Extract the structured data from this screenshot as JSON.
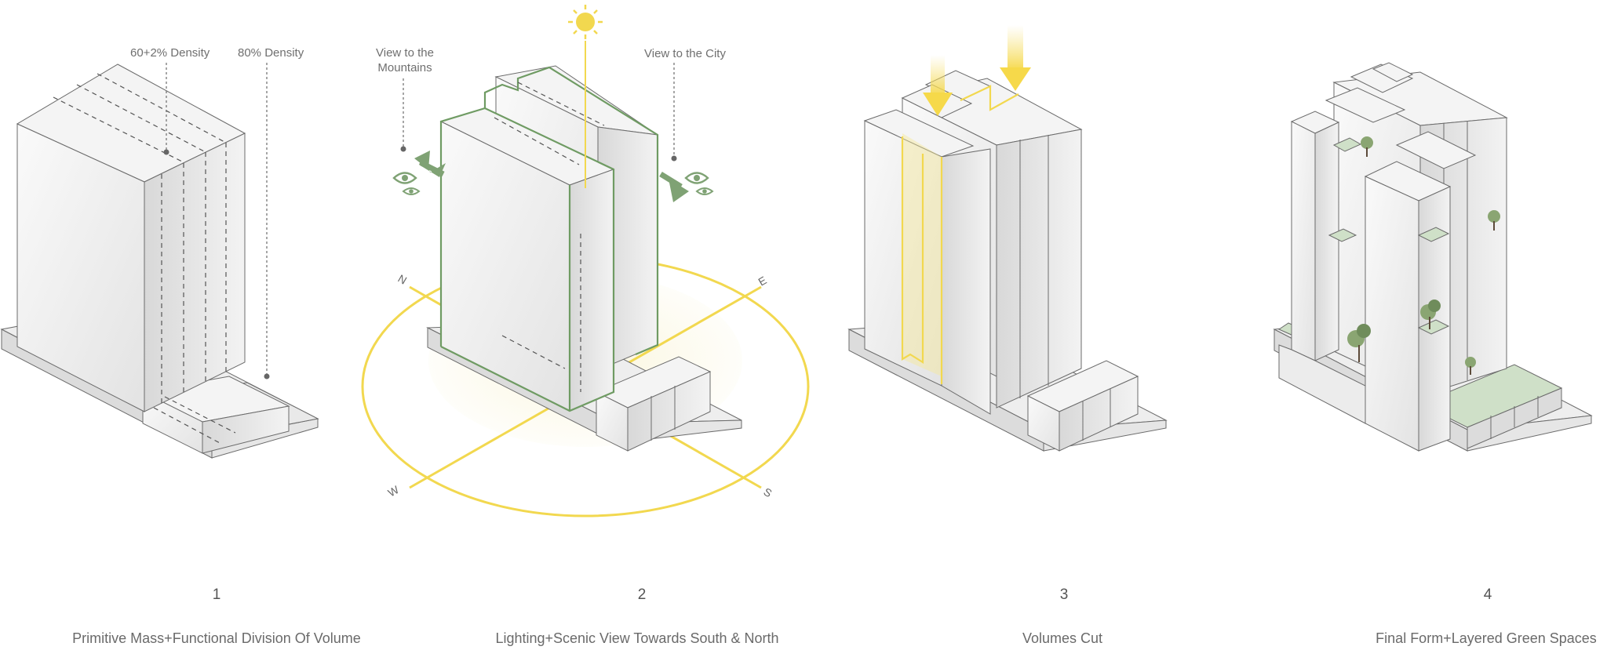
{
  "panels": [
    {
      "number": "1",
      "caption": "Primitive Mass+Functional Division Of  Volume",
      "annotations": [
        "60+2% Density",
        "80% Density"
      ]
    },
    {
      "number": "2",
      "caption": "Lighting+Scenic View Towards South & North",
      "annotations": [
        "View to the",
        "Mountains",
        "View to the City"
      ],
      "compass": [
        "N",
        "E",
        "W",
        "S"
      ]
    },
    {
      "number": "3",
      "caption": "Volumes Cut"
    },
    {
      "number": "4",
      "caption": "Final Form+Layered Green Spaces"
    }
  ],
  "colors": {
    "sun": "#f2d84f",
    "view_arrow": "#7fa274",
    "green_space": "#cfe0c8",
    "outline": "#6b6b6b"
  },
  "icons": [
    "sun-icon",
    "eye-icon",
    "tree-icon",
    "arrow-icon"
  ]
}
